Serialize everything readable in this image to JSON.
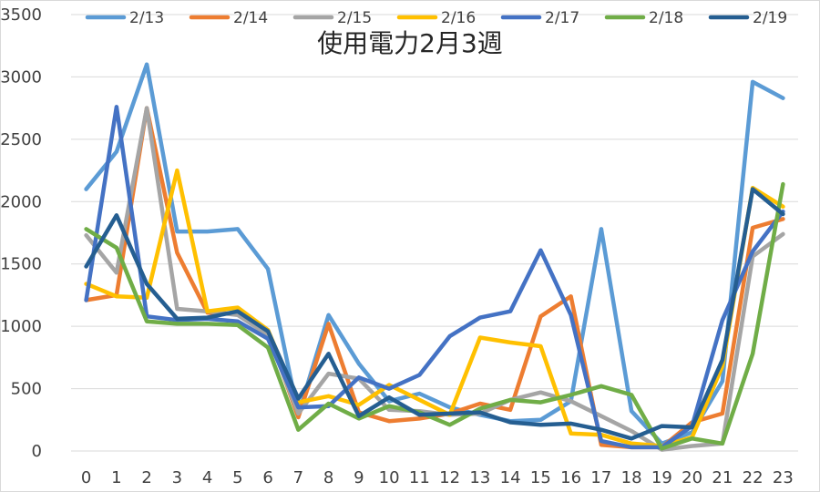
{
  "chart_data": {
    "type": "line",
    "title": "使用電力2月3週",
    "x": [
      0,
      1,
      2,
      3,
      4,
      5,
      6,
      7,
      8,
      9,
      10,
      11,
      12,
      13,
      14,
      15,
      16,
      17,
      18,
      19,
      20,
      21,
      22,
      23
    ],
    "x_tick_labels": [
      "0",
      "1",
      "2",
      "3",
      "4",
      "5",
      "6",
      "7",
      "8",
      "9",
      "10",
      "11",
      "12",
      "13",
      "14",
      "15",
      "16",
      "17",
      "18",
      "19",
      "20",
      "21",
      "22",
      "23"
    ],
    "ylim": [
      0,
      3500
    ],
    "y_ticks": [
      0,
      500,
      1000,
      1500,
      2000,
      2500,
      3000,
      3500
    ],
    "y_tick_labels": [
      "0",
      "500",
      "1000",
      "1500",
      "2000",
      "2500",
      "3000",
      "3500"
    ],
    "grid": "horizontal",
    "legend_position": "top",
    "series": [
      {
        "name": "2/13",
        "color": "#5B9BD5",
        "values": [
          2100,
          2400,
          3100,
          1760,
          1760,
          1780,
          1460,
          290,
          1090,
          700,
          400,
          460,
          350,
          290,
          240,
          250,
          400,
          1780,
          320,
          60,
          150,
          560,
          2960,
          2830
        ]
      },
      {
        "name": "2/14",
        "color": "#ED7D31",
        "values": [
          1210,
          1250,
          2750,
          1590,
          1110,
          1100,
          960,
          270,
          1020,
          310,
          240,
          260,
          300,
          380,
          330,
          1080,
          1240,
          50,
          30,
          30,
          230,
          300,
          1790,
          1860
        ]
      },
      {
        "name": "2/15",
        "color": "#A5A5A5",
        "values": [
          1730,
          1430,
          2750,
          1140,
          1120,
          1090,
          930,
          300,
          620,
          580,
          330,
          320,
          290,
          300,
          410,
          470,
          400,
          280,
          160,
          10,
          40,
          60,
          1560,
          1740
        ]
      },
      {
        "name": "2/16",
        "color": "#FFC000",
        "values": [
          1340,
          1240,
          1230,
          2250,
          1120,
          1150,
          970,
          390,
          440,
          370,
          530,
          410,
          290,
          910,
          870,
          840,
          140,
          130,
          60,
          40,
          110,
          680,
          2110,
          1960
        ]
      },
      {
        "name": "2/17",
        "color": "#4472C4",
        "values": [
          1210,
          2760,
          1080,
          1050,
          1060,
          1040,
          900,
          350,
          360,
          590,
          500,
          610,
          920,
          1070,
          1120,
          1610,
          1090,
          80,
          30,
          30,
          200,
          1050,
          1600,
          1920
        ]
      },
      {
        "name": "2/18",
        "color": "#70AD47",
        "values": [
          1780,
          1630,
          1040,
          1020,
          1020,
          1010,
          830,
          170,
          380,
          260,
          360,
          310,
          210,
          340,
          410,
          390,
          450,
          520,
          450,
          20,
          100,
          60,
          780,
          2140
        ]
      },
      {
        "name": "2/19",
        "color": "#255E91",
        "values": [
          1480,
          1890,
          1340,
          1060,
          1070,
          1120,
          960,
          420,
          780,
          280,
          430,
          290,
          300,
          310,
          230,
          210,
          220,
          170,
          100,
          200,
          190,
          730,
          2100,
          1900
        ]
      }
    ]
  }
}
